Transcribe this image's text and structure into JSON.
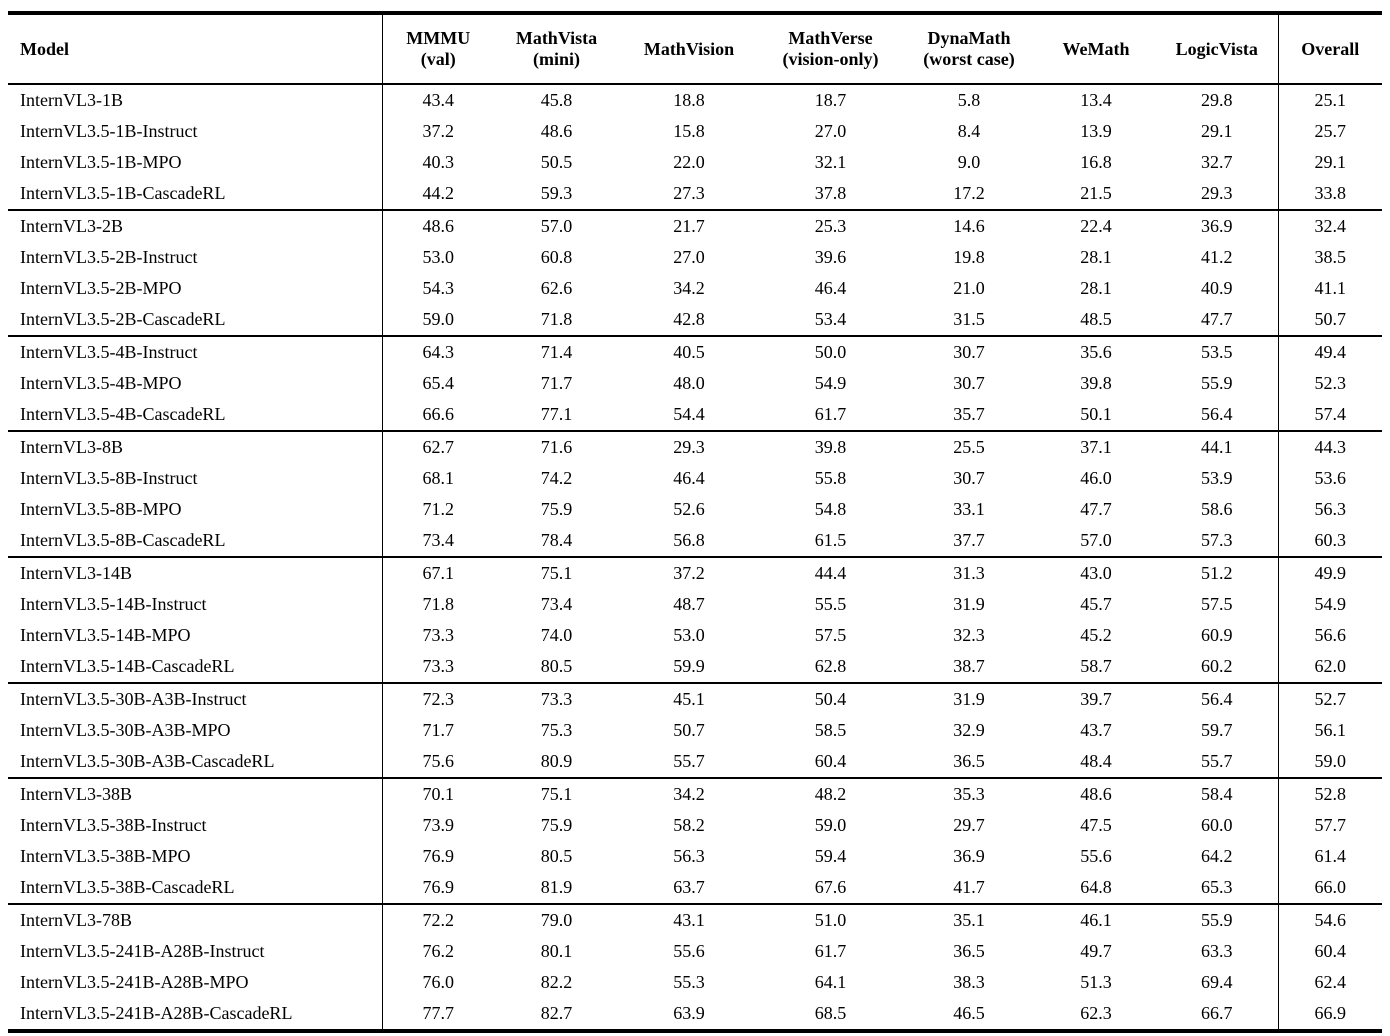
{
  "table": {
    "header": {
      "model": "Model",
      "columns": [
        {
          "label": "MMMU",
          "sub": "(val)"
        },
        {
          "label": "MathVista",
          "sub": "(mini)"
        },
        {
          "label": "MathVision",
          "sub": ""
        },
        {
          "label": "MathVerse",
          "sub": "(vision-only)"
        },
        {
          "label": "DynaMath",
          "sub": "(worst case)"
        },
        {
          "label": "WeMath",
          "sub": ""
        },
        {
          "label": "LogicVista",
          "sub": ""
        },
        {
          "label": "Overall",
          "sub": ""
        }
      ]
    },
    "groups": [
      {
        "rows": [
          {
            "model": "InternVL3-1B",
            "values": [
              "43.4",
              "45.8",
              "18.8",
              "18.7",
              "5.8",
              "13.4",
              "29.8",
              "25.1"
            ]
          },
          {
            "model": "InternVL3.5-1B-Instruct",
            "values": [
              "37.2",
              "48.6",
              "15.8",
              "27.0",
              "8.4",
              "13.9",
              "29.1",
              "25.7"
            ]
          },
          {
            "model": "InternVL3.5-1B-MPO",
            "values": [
              "40.3",
              "50.5",
              "22.0",
              "32.1",
              "9.0",
              "16.8",
              "32.7",
              "29.1"
            ]
          },
          {
            "model": "InternVL3.5-1B-CascadeRL",
            "values": [
              "44.2",
              "59.3",
              "27.3",
              "37.8",
              "17.2",
              "21.5",
              "29.3",
              "33.8"
            ]
          }
        ]
      },
      {
        "rows": [
          {
            "model": "InternVL3-2B",
            "values": [
              "48.6",
              "57.0",
              "21.7",
              "25.3",
              "14.6",
              "22.4",
              "36.9",
              "32.4"
            ]
          },
          {
            "model": "InternVL3.5-2B-Instruct",
            "values": [
              "53.0",
              "60.8",
              "27.0",
              "39.6",
              "19.8",
              "28.1",
              "41.2",
              "38.5"
            ]
          },
          {
            "model": "InternVL3.5-2B-MPO",
            "values": [
              "54.3",
              "62.6",
              "34.2",
              "46.4",
              "21.0",
              "28.1",
              "40.9",
              "41.1"
            ]
          },
          {
            "model": "InternVL3.5-2B-CascadeRL",
            "values": [
              "59.0",
              "71.8",
              "42.8",
              "53.4",
              "31.5",
              "48.5",
              "47.7",
              "50.7"
            ]
          }
        ]
      },
      {
        "rows": [
          {
            "model": "InternVL3.5-4B-Instruct",
            "values": [
              "64.3",
              "71.4",
              "40.5",
              "50.0",
              "30.7",
              "35.6",
              "53.5",
              "49.4"
            ]
          },
          {
            "model": "InternVL3.5-4B-MPO",
            "values": [
              "65.4",
              "71.7",
              "48.0",
              "54.9",
              "30.7",
              "39.8",
              "55.9",
              "52.3"
            ]
          },
          {
            "model": "InternVL3.5-4B-CascadeRL",
            "values": [
              "66.6",
              "77.1",
              "54.4",
              "61.7",
              "35.7",
              "50.1",
              "56.4",
              "57.4"
            ]
          }
        ]
      },
      {
        "rows": [
          {
            "model": "InternVL3-8B",
            "values": [
              "62.7",
              "71.6",
              "29.3",
              "39.8",
              "25.5",
              "37.1",
              "44.1",
              "44.3"
            ]
          },
          {
            "model": "InternVL3.5-8B-Instruct",
            "values": [
              "68.1",
              "74.2",
              "46.4",
              "55.8",
              "30.7",
              "46.0",
              "53.9",
              "53.6"
            ]
          },
          {
            "model": "InternVL3.5-8B-MPO",
            "values": [
              "71.2",
              "75.9",
              "52.6",
              "54.8",
              "33.1",
              "47.7",
              "58.6",
              "56.3"
            ]
          },
          {
            "model": "InternVL3.5-8B-CascadeRL",
            "values": [
              "73.4",
              "78.4",
              "56.8",
              "61.5",
              "37.7",
              "57.0",
              "57.3",
              "60.3"
            ]
          }
        ]
      },
      {
        "rows": [
          {
            "model": "InternVL3-14B",
            "values": [
              "67.1",
              "75.1",
              "37.2",
              "44.4",
              "31.3",
              "43.0",
              "51.2",
              "49.9"
            ]
          },
          {
            "model": "InternVL3.5-14B-Instruct",
            "values": [
              "71.8",
              "73.4",
              "48.7",
              "55.5",
              "31.9",
              "45.7",
              "57.5",
              "54.9"
            ]
          },
          {
            "model": "InternVL3.5-14B-MPO",
            "values": [
              "73.3",
              "74.0",
              "53.0",
              "57.5",
              "32.3",
              "45.2",
              "60.9",
              "56.6"
            ]
          },
          {
            "model": "InternVL3.5-14B-CascadeRL",
            "values": [
              "73.3",
              "80.5",
              "59.9",
              "62.8",
              "38.7",
              "58.7",
              "60.2",
              "62.0"
            ]
          }
        ]
      },
      {
        "rows": [
          {
            "model": "InternVL3.5-30B-A3B-Instruct",
            "values": [
              "72.3",
              "73.3",
              "45.1",
              "50.4",
              "31.9",
              "39.7",
              "56.4",
              "52.7"
            ]
          },
          {
            "model": "InternVL3.5-30B-A3B-MPO",
            "values": [
              "71.7",
              "75.3",
              "50.7",
              "58.5",
              "32.9",
              "43.7",
              "59.7",
              "56.1"
            ]
          },
          {
            "model": "InternVL3.5-30B-A3B-CascadeRL",
            "values": [
              "75.6",
              "80.9",
              "55.7",
              "60.4",
              "36.5",
              "48.4",
              "55.7",
              "59.0"
            ]
          }
        ]
      },
      {
        "rows": [
          {
            "model": "InternVL3-38B",
            "values": [
              "70.1",
              "75.1",
              "34.2",
              "48.2",
              "35.3",
              "48.6",
              "58.4",
              "52.8"
            ]
          },
          {
            "model": "InternVL3.5-38B-Instruct",
            "values": [
              "73.9",
              "75.9",
              "58.2",
              "59.0",
              "29.7",
              "47.5",
              "60.0",
              "57.7"
            ]
          },
          {
            "model": "InternVL3.5-38B-MPO",
            "values": [
              "76.9",
              "80.5",
              "56.3",
              "59.4",
              "36.9",
              "55.6",
              "64.2",
              "61.4"
            ]
          },
          {
            "model": "InternVL3.5-38B-CascadeRL",
            "values": [
              "76.9",
              "81.9",
              "63.7",
              "67.6",
              "41.7",
              "64.8",
              "65.3",
              "66.0"
            ]
          }
        ]
      },
      {
        "rows": [
          {
            "model": "InternVL3-78B",
            "values": [
              "72.2",
              "79.0",
              "43.1",
              "51.0",
              "35.1",
              "46.1",
              "55.9",
              "54.6"
            ]
          },
          {
            "model": "InternVL3.5-241B-A28B-Instruct",
            "values": [
              "76.2",
              "80.1",
              "55.6",
              "61.7",
              "36.5",
              "49.7",
              "63.3",
              "60.4"
            ]
          },
          {
            "model": "InternVL3.5-241B-A28B-MPO",
            "values": [
              "76.0",
              "82.2",
              "55.3",
              "64.1",
              "38.3",
              "51.3",
              "69.4",
              "62.4"
            ]
          },
          {
            "model": "InternVL3.5-241B-A28B-CascadeRL",
            "values": [
              "77.7",
              "82.7",
              "63.9",
              "68.5",
              "46.5",
              "62.3",
              "66.7",
              "66.9"
            ]
          }
        ]
      }
    ]
  }
}
